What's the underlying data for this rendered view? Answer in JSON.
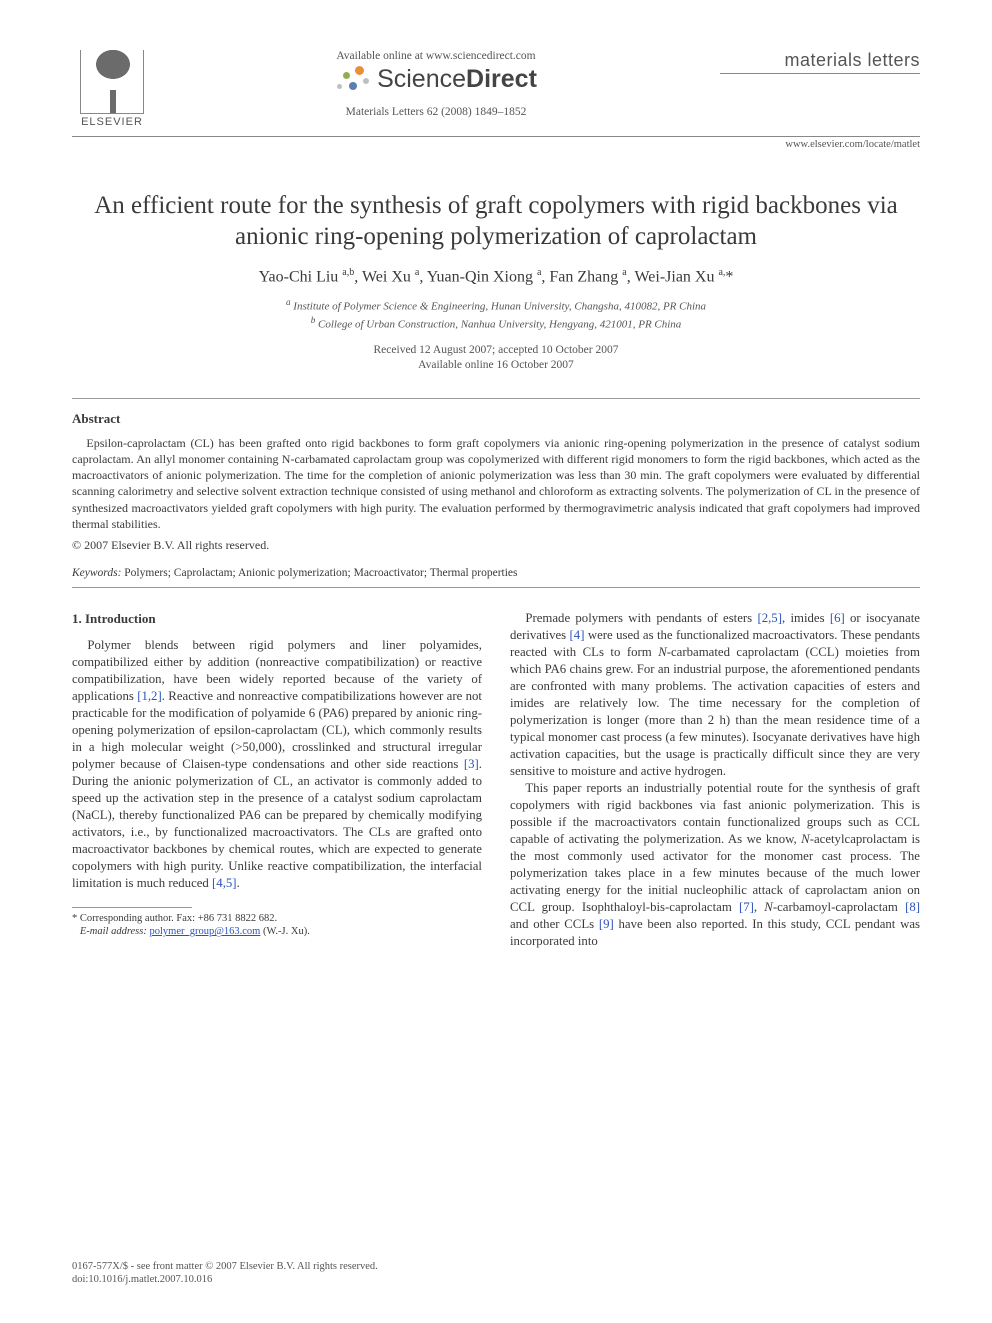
{
  "header": {
    "elsevier_label": "ELSEVIER",
    "available_line": "Available online at www.sciencedirect.com",
    "sd_light": "Science",
    "sd_bold": "Direct",
    "journal_ref": "Materials Letters 62 (2008) 1849–1852",
    "journal_name": "materials letters",
    "site_url": "www.elsevier.com/locate/matlet",
    "sd_dot_colors": {
      "orange": "#e98f3a",
      "green": "#8fb04e",
      "blue": "#5a7fb0",
      "grey": "#bfbfbf"
    }
  },
  "title": "An efficient route for the synthesis of graft copolymers with rigid backbones via anionic ring-opening polymerization of caprolactam",
  "authors_html": "Yao-Chi Liu <sup>a,b</sup>, Wei Xu <sup>a</sup>, Yuan-Qin Xiong <sup>a</sup>, Fan Zhang <sup>a</sup>, Wei-Jian Xu <sup>a,</sup>*",
  "affils": {
    "a": "Institute of Polymer Science & Engineering, Hunan University, Changsha, 410082, PR China",
    "b": "College of Urban Construction, Nanhua University, Hengyang, 421001, PR China"
  },
  "dates": {
    "received": "Received 12 August 2007; accepted 10 October 2007",
    "online": "Available online 16 October 2007"
  },
  "abstract_head": "Abstract",
  "abstract_body": "Epsilon-caprolactam (CL) has been grafted onto rigid backbones to form graft copolymers via anionic ring-opening polymerization in the presence of catalyst sodium caprolactam. An allyl monomer containing N-carbamated caprolactam group was copolymerized with different rigid monomers to form the rigid backbones, which acted as the macroactivators of anionic polymerization. The time for the completion of anionic polymerization was less than 30 min. The graft copolymers were evaluated by differential scanning calorimetry and selective solvent extraction technique consisted of using methanol and chloroform as extracting solvents. The polymerization of CL in the presence of synthesized macroactivators yielded graft copolymers with high purity. The evaluation performed by thermogravimetric analysis indicated that graft copolymers had improved thermal stabilities.",
  "copyright": "© 2007 Elsevier B.V. All rights reserved.",
  "keywords_label": "Keywords:",
  "keywords_text": " Polymers; Caprolactam; Anionic polymerization; Macroactivator; Thermal properties",
  "section1_head": "1. Introduction",
  "col_left": {
    "p1_a": "Polymer blends between rigid polymers and liner polyamides, compatibilized either by addition (nonreactive compatibilization) or reactive compatibilization, have been widely reported because of the variety of applications ",
    "c1": "[1,2]",
    "p1_b": ". Reactive and nonreactive compatibilizations however are not practicable for the modification of polyamide 6 (PA6) prepared by anionic ring-opening polymerization of epsilon-caprolactam (CL), which commonly results in a high molecular weight (>50,000), crosslinked and structural irregular polymer because of Claisen-type condensations and other side reactions ",
    "c2": "[3]",
    "p1_c": ". During the anionic polymerization of CL, an activator is commonly added to speed up the activation step in the presence of a catalyst sodium caprolactam (NaCL), thereby functionalized PA6 can be prepared by chemically modifying activators, i.e., by functionalized macroactivators. The CLs are grafted onto macroactivator backbones by chemical routes, which are expected to generate copolymers with high purity. Unlike reactive compatibilization, the interfacial limitation is much reduced ",
    "c3": "[4,5]",
    "p1_d": "."
  },
  "col_right": {
    "p1_a": "Premade polymers with pendants of esters ",
    "c1": "[2,5]",
    "p1_b": ", imides ",
    "c2": "[6]",
    "p1_c": " or isocyanate derivatives ",
    "c3": "[4]",
    "p1_d": " were used as the functionalized macroactivators. These pendants reacted with CLs to form ",
    "ital1": "N",
    "p1_e": "-carbamated caprolactam (CCL) moieties from which PA6 chains grew. For an industrial purpose, the aforementioned pendants are confronted with many problems. The activation capacities of esters and imides are relatively low. The time necessary for the completion of polymerization is longer (more than 2 h) than the mean residence time of a typical monomer cast process (a few minutes). Isocyanate derivatives have high activation capacities, but the usage is practically difficult since they are very sensitive to moisture and active hydrogen.",
    "p2_a": "This paper reports an industrially potential route for the synthesis of graft copolymers with rigid backbones via fast anionic polymerization. This is possible if the macroactivators contain functionalized groups such as CCL capable of activating the polymerization. As we know, ",
    "ital2": "N",
    "p2_b": "-acetylcaprolactam is the most commonly used activator for the monomer cast process. The polymerization takes place in a few minutes because of the much lower activating energy for the initial nucleophilic attack of caprolactam anion on CCL group. Isophthaloyl-bis-caprolactam ",
    "c4": "[7]",
    "p2_c": ", ",
    "ital3": "N",
    "p2_d": "-carbamoyl-caprolactam ",
    "c5": "[8]",
    "p2_e": " and other CCLs ",
    "c6": "[9]",
    "p2_f": " have been also reported. In this study, CCL pendant was incorporated into"
  },
  "footnote": {
    "corr": "* Corresponding author. Fax: +86 731 8822 682.",
    "email_label": "E-mail address:",
    "email": "polymer_group@163.com",
    "email_tail": " (W.-J. Xu)."
  },
  "bottom": {
    "line1": "0167-577X/$ - see front matter © 2007 Elsevier B.V. All rights reserved.",
    "line2": "doi:10.1016/j.matlet.2007.10.016"
  }
}
